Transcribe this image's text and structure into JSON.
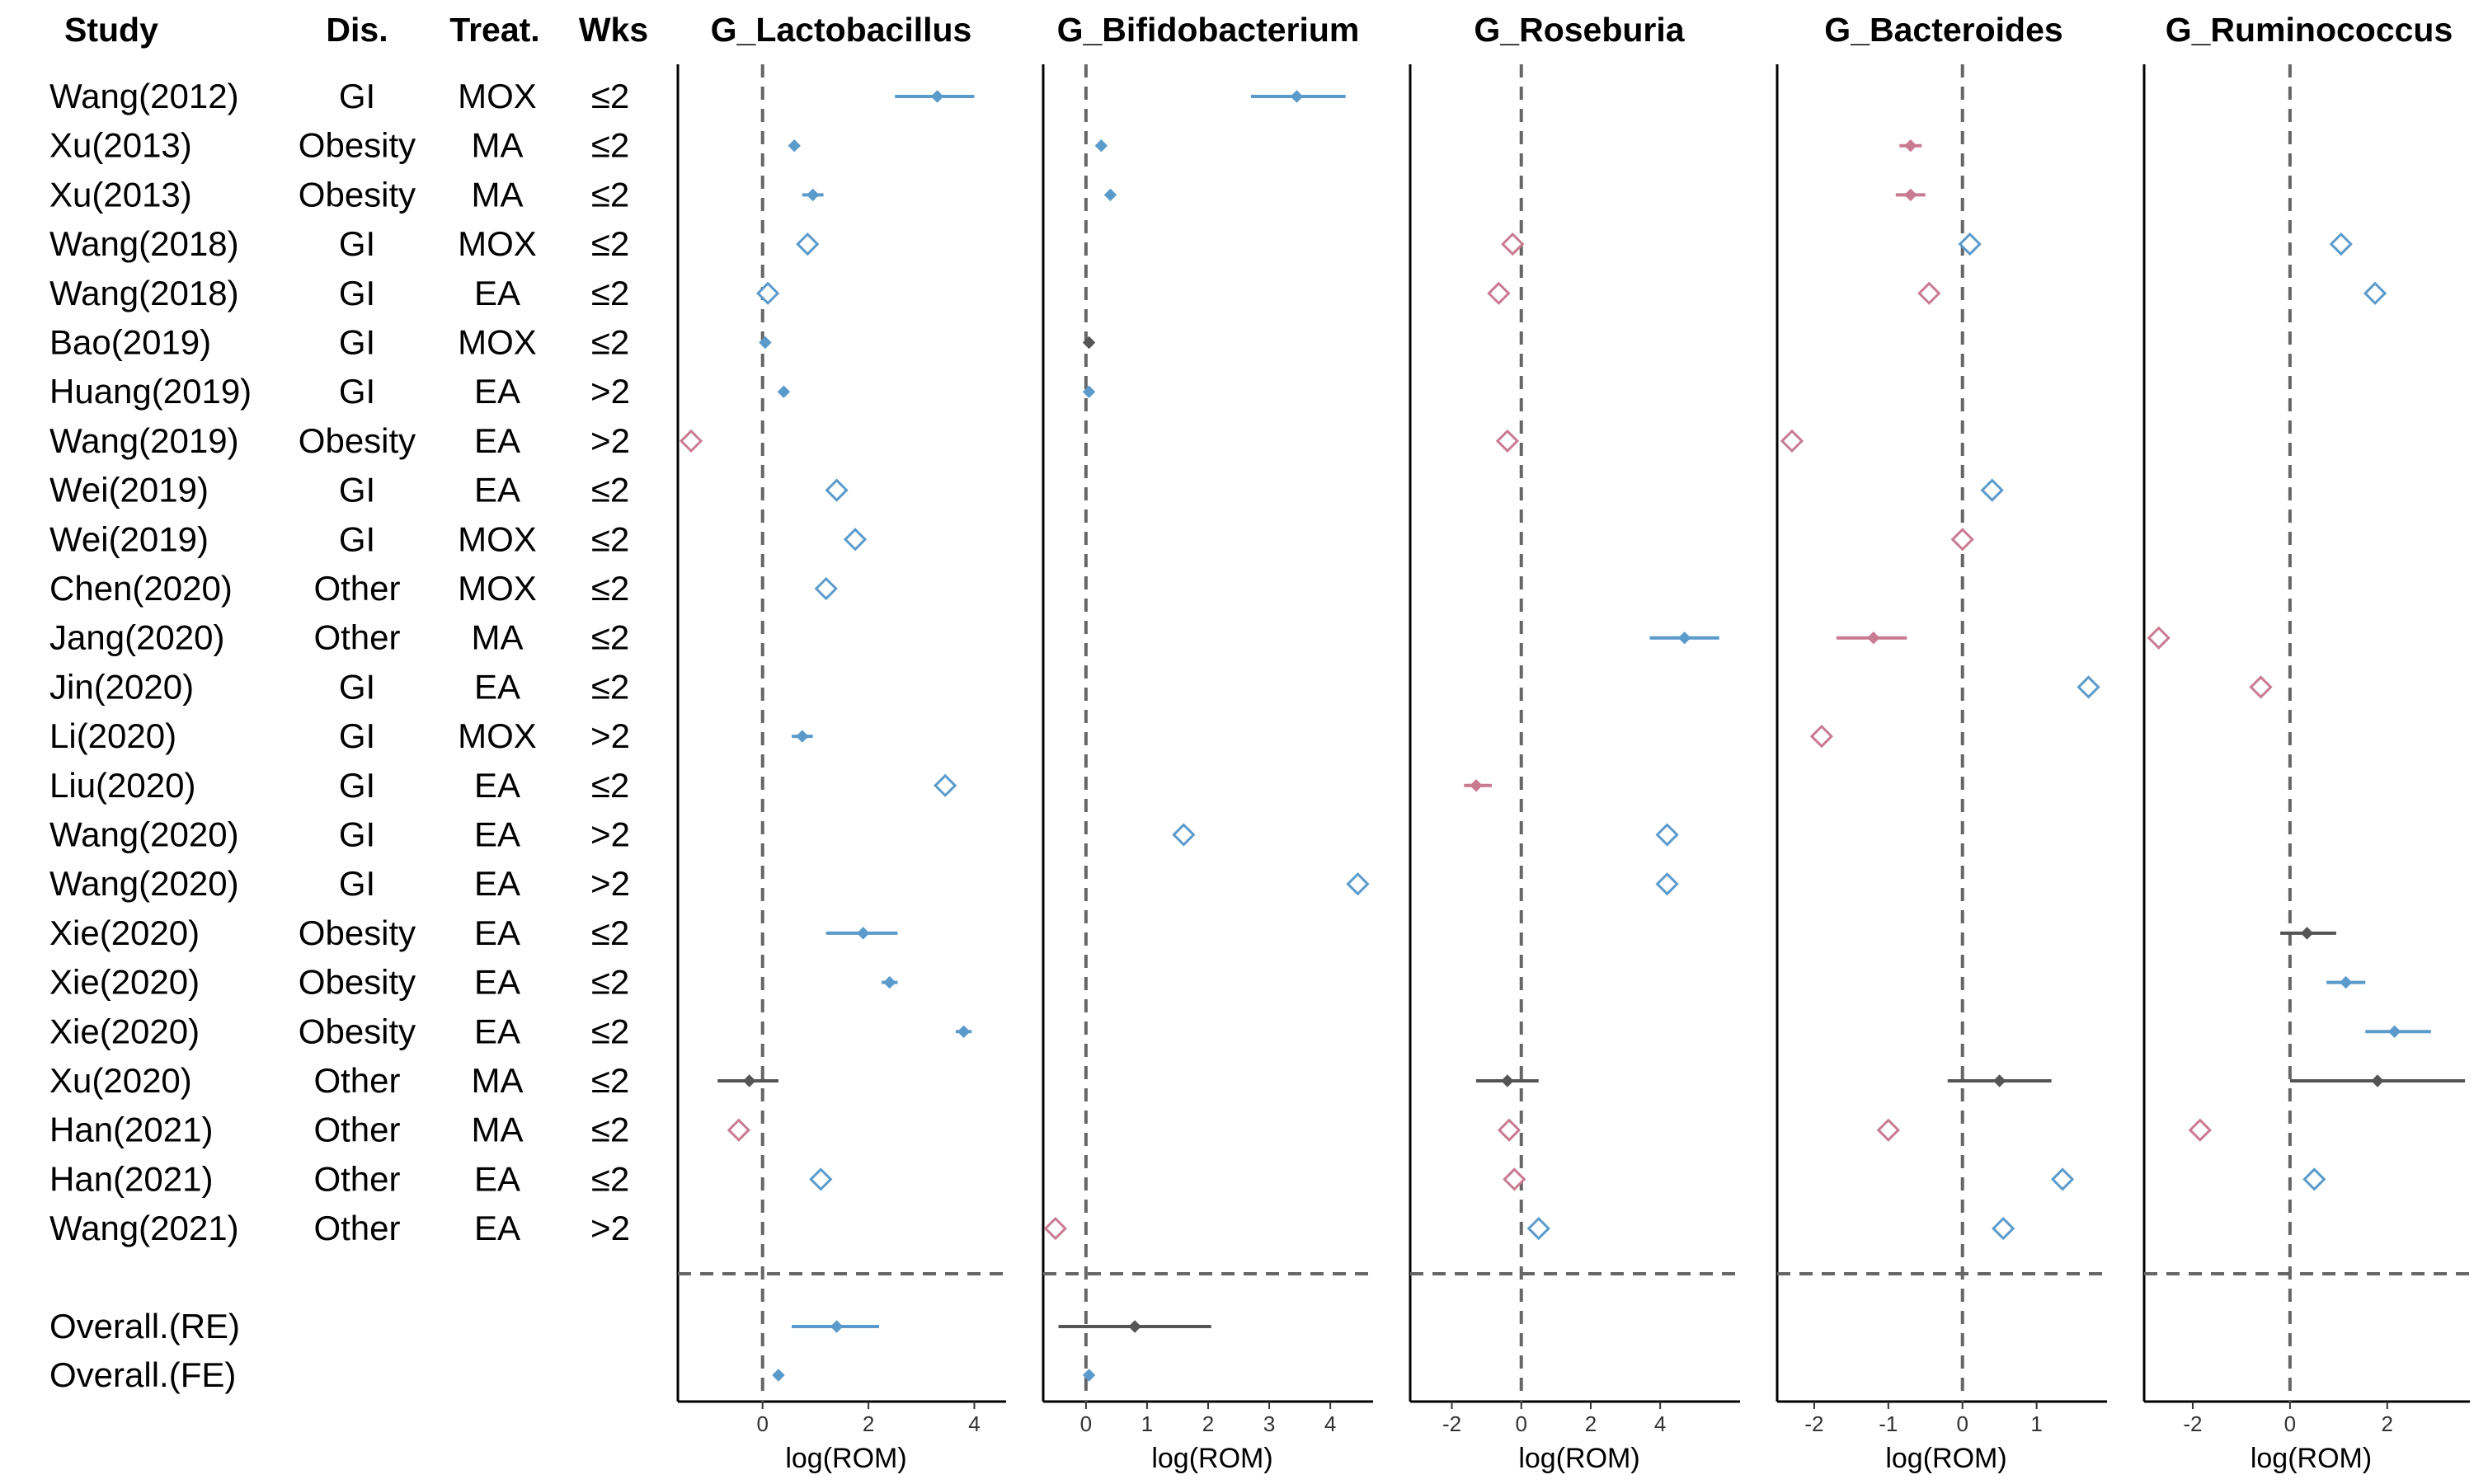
{
  "columns": {
    "study": "Study",
    "disease": "Dis.",
    "treatment": "Treat.",
    "weeks": "Wks"
  },
  "rows": [
    {
      "study": "Wang(2012)",
      "disease": "GI",
      "treatment": "MOX",
      "weeks": "≤2"
    },
    {
      "study": "Xu(2013)",
      "disease": "Obesity",
      "treatment": "MA",
      "weeks": "≤2"
    },
    {
      "study": "Xu(2013)",
      "disease": "Obesity",
      "treatment": "MA",
      "weeks": "≤2"
    },
    {
      "study": "Wang(2018)",
      "disease": "GI",
      "treatment": "MOX",
      "weeks": "≤2"
    },
    {
      "study": "Wang(2018)",
      "disease": "GI",
      "treatment": "EA",
      "weeks": "≤2"
    },
    {
      "study": "Bao(2019)",
      "disease": "GI",
      "treatment": "MOX",
      "weeks": "≤2"
    },
    {
      "study": "Huang(2019)",
      "disease": "GI",
      "treatment": "EA",
      "weeks": ">2"
    },
    {
      "study": "Wang(2019)",
      "disease": "Obesity",
      "treatment": "EA",
      "weeks": ">2"
    },
    {
      "study": "Wei(2019)",
      "disease": "GI",
      "treatment": "EA",
      "weeks": "≤2"
    },
    {
      "study": "Wei(2019)",
      "disease": "GI",
      "treatment": "MOX",
      "weeks": "≤2"
    },
    {
      "study": "Chen(2020)",
      "disease": "Other",
      "treatment": "MOX",
      "weeks": "≤2"
    },
    {
      "study": "Jang(2020)",
      "disease": "Other",
      "treatment": "MA",
      "weeks": "≤2"
    },
    {
      "study": "Jin(2020)",
      "disease": "GI",
      "treatment": "EA",
      "weeks": "≤2"
    },
    {
      "study": "Li(2020)",
      "disease": "GI",
      "treatment": "MOX",
      "weeks": ">2"
    },
    {
      "study": "Liu(2020)",
      "disease": "GI",
      "treatment": "EA",
      "weeks": "≤2"
    },
    {
      "study": "Wang(2020)",
      "disease": "GI",
      "treatment": "EA",
      "weeks": ">2"
    },
    {
      "study": "Wang(2020)",
      "disease": "GI",
      "treatment": "EA",
      "weeks": ">2"
    },
    {
      "study": "Xie(2020)",
      "disease": "Obesity",
      "treatment": "EA",
      "weeks": "≤2"
    },
    {
      "study": "Xie(2020)",
      "disease": "Obesity",
      "treatment": "EA",
      "weeks": "≤2"
    },
    {
      "study": "Xie(2020)",
      "disease": "Obesity",
      "treatment": "EA",
      "weeks": "≤2"
    },
    {
      "study": "Xu(2020)",
      "disease": "Other",
      "treatment": "MA",
      "weeks": "≤2"
    },
    {
      "study": "Han(2021)",
      "disease": "Other",
      "treatment": "MA",
      "weeks": "≤2"
    },
    {
      "study": "Han(2021)",
      "disease": "Other",
      "treatment": "EA",
      "weeks": "≤2"
    },
    {
      "study": "Wang(2021)",
      "disease": "Other",
      "treatment": "EA",
      "weeks": ">2"
    }
  ],
  "overall_rows": [
    "Overall.(RE)",
    "Overall.(FE)"
  ],
  "colors": {
    "positive": "#5b9bcb",
    "negative": "#c97b91",
    "nonsignificant": "#555555",
    "reference": "#666666"
  },
  "chart_data": [
    {
      "type": "forest",
      "title": "G_Lactobacillus",
      "xlabel": "log(ROM)",
      "xlim": [
        -1.6,
        4.6
      ],
      "xticks": [
        0,
        2,
        4
      ],
      "points": [
        {
          "row": 0,
          "est": 3.3,
          "lo": 2.5,
          "hi": 4.0,
          "marker": "filled",
          "color": "positive"
        },
        {
          "row": 1,
          "est": 0.6,
          "marker": "filled",
          "color": "positive"
        },
        {
          "row": 2,
          "est": 0.95,
          "lo": 0.75,
          "hi": 1.15,
          "marker": "filled",
          "color": "positive"
        },
        {
          "row": 3,
          "est": 0.85,
          "marker": "open",
          "color": "positive"
        },
        {
          "row": 4,
          "est": 0.1,
          "marker": "open",
          "color": "positive"
        },
        {
          "row": 5,
          "est": 0.05,
          "marker": "filled",
          "color": "positive"
        },
        {
          "row": 6,
          "est": 0.4,
          "marker": "filled",
          "color": "positive"
        },
        {
          "row": 7,
          "est": -1.35,
          "marker": "open",
          "color": "negative"
        },
        {
          "row": 8,
          "est": 1.4,
          "marker": "open",
          "color": "positive"
        },
        {
          "row": 9,
          "est": 1.75,
          "marker": "open",
          "color": "positive"
        },
        {
          "row": 10,
          "est": 1.2,
          "marker": "open",
          "color": "positive"
        },
        {
          "row": 13,
          "est": 0.75,
          "lo": 0.55,
          "hi": 0.95,
          "marker": "filled",
          "color": "positive"
        },
        {
          "row": 14,
          "est": 3.45,
          "marker": "open",
          "color": "positive"
        },
        {
          "row": 17,
          "est": 1.9,
          "lo": 1.2,
          "hi": 2.55,
          "marker": "filled",
          "color": "positive"
        },
        {
          "row": 18,
          "est": 2.4,
          "lo": 2.25,
          "hi": 2.55,
          "marker": "filled",
          "color": "positive"
        },
        {
          "row": 19,
          "est": 3.8,
          "lo": 3.65,
          "hi": 3.95,
          "marker": "filled",
          "color": "positive"
        },
        {
          "row": 20,
          "est": -0.25,
          "lo": -0.85,
          "hi": 0.3,
          "marker": "filled",
          "color": "nonsignificant"
        },
        {
          "row": 21,
          "est": -0.45,
          "marker": "open",
          "color": "negative"
        },
        {
          "row": 22,
          "est": 1.1,
          "marker": "open",
          "color": "positive"
        }
      ],
      "overall": [
        {
          "label": "Overall.(RE)",
          "est": 1.4,
          "lo": 0.55,
          "hi": 2.2,
          "color": "positive"
        },
        {
          "label": "Overall.(FE)",
          "est": 0.3,
          "color": "positive"
        }
      ]
    },
    {
      "type": "forest",
      "title": "G_Bifidobacterium",
      "xlabel": "log(ROM)",
      "xlim": [
        -0.7,
        4.7
      ],
      "xticks": [
        0,
        1,
        2,
        3,
        4
      ],
      "points": [
        {
          "row": 0,
          "est": 3.45,
          "lo": 2.7,
          "hi": 4.25,
          "marker": "filled",
          "color": "positive"
        },
        {
          "row": 1,
          "est": 0.25,
          "marker": "filled",
          "color": "positive"
        },
        {
          "row": 2,
          "est": 0.4,
          "marker": "filled",
          "color": "positive"
        },
        {
          "row": 5,
          "est": 0.05,
          "marker": "filled",
          "color": "nonsignificant"
        },
        {
          "row": 6,
          "est": 0.05,
          "marker": "filled",
          "color": "positive"
        },
        {
          "row": 15,
          "est": 1.6,
          "marker": "open",
          "color": "positive"
        },
        {
          "row": 16,
          "est": 4.45,
          "marker": "open",
          "color": "positive"
        },
        {
          "row": 23,
          "est": -0.5,
          "marker": "open",
          "color": "negative"
        }
      ],
      "overall": [
        {
          "label": "Overall.(RE)",
          "est": 0.8,
          "lo": -0.45,
          "hi": 2.05,
          "color": "nonsignificant"
        },
        {
          "label": "Overall.(FE)",
          "est": 0.05,
          "color": "positive"
        }
      ]
    },
    {
      "type": "forest",
      "title": "G_Roseburia",
      "xlabel": "log(ROM)",
      "xlim": [
        -3.2,
        6.3
      ],
      "xticks": [
        -2,
        0,
        2,
        4
      ],
      "points": [
        {
          "row": 3,
          "est": -0.25,
          "marker": "open",
          "color": "negative"
        },
        {
          "row": 4,
          "est": -0.65,
          "marker": "open",
          "color": "negative"
        },
        {
          "row": 7,
          "est": -0.4,
          "marker": "open",
          "color": "negative"
        },
        {
          "row": 11,
          "est": 4.7,
          "lo": 3.7,
          "hi": 5.7,
          "marker": "filled",
          "color": "positive"
        },
        {
          "row": 14,
          "est": -1.3,
          "lo": -1.65,
          "hi": -0.85,
          "marker": "filled",
          "color": "negative"
        },
        {
          "row": 15,
          "est": 4.2,
          "marker": "open",
          "color": "positive"
        },
        {
          "row": 16,
          "est": 4.2,
          "marker": "open",
          "color": "positive"
        },
        {
          "row": 20,
          "est": -0.4,
          "lo": -1.3,
          "hi": 0.5,
          "marker": "filled",
          "color": "nonsignificant"
        },
        {
          "row": 21,
          "est": -0.35,
          "marker": "open",
          "color": "negative"
        },
        {
          "row": 22,
          "est": -0.2,
          "marker": "open",
          "color": "negative"
        },
        {
          "row": 23,
          "est": 0.5,
          "marker": "open",
          "color": "positive"
        }
      ],
      "overall": []
    },
    {
      "type": "forest",
      "title": "G_Bacteroides",
      "xlabel": "log(ROM)",
      "xlim": [
        -2.5,
        1.95
      ],
      "xticks": [
        -2,
        -1,
        0,
        1
      ],
      "points": [
        {
          "row": 1,
          "est": -0.7,
          "lo": -0.85,
          "hi": -0.55,
          "marker": "filled",
          "color": "negative"
        },
        {
          "row": 2,
          "est": -0.7,
          "lo": -0.9,
          "hi": -0.5,
          "marker": "filled",
          "color": "negative"
        },
        {
          "row": 3,
          "est": 0.1,
          "marker": "open",
          "color": "positive"
        },
        {
          "row": 4,
          "est": -0.45,
          "marker": "open",
          "color": "negative"
        },
        {
          "row": 7,
          "est": -2.3,
          "marker": "open",
          "color": "negative"
        },
        {
          "row": 8,
          "est": 0.4,
          "marker": "open",
          "color": "positive"
        },
        {
          "row": 9,
          "est": 0.0,
          "marker": "open",
          "color": "negative"
        },
        {
          "row": 11,
          "est": -1.2,
          "lo": -1.7,
          "hi": -0.75,
          "marker": "filled",
          "color": "negative"
        },
        {
          "row": 12,
          "est": 1.7,
          "marker": "open",
          "color": "positive"
        },
        {
          "row": 13,
          "est": -1.9,
          "marker": "open",
          "color": "negative"
        },
        {
          "row": 20,
          "est": 0.5,
          "lo": -0.2,
          "hi": 1.2,
          "marker": "filled",
          "color": "nonsignificant"
        },
        {
          "row": 21,
          "est": -1.0,
          "marker": "open",
          "color": "negative"
        },
        {
          "row": 22,
          "est": 1.35,
          "marker": "open",
          "color": "positive"
        },
        {
          "row": 23,
          "est": 0.55,
          "marker": "open",
          "color": "positive"
        }
      ],
      "overall": []
    },
    {
      "type": "forest",
      "title": "G_Ruminococcus",
      "xlabel": "log(ROM)",
      "xlim": [
        -3.0,
        3.7
      ],
      "xticks": [
        -2,
        0,
        2
      ],
      "points": [
        {
          "row": 3,
          "est": 1.05,
          "marker": "open",
          "color": "positive"
        },
        {
          "row": 4,
          "est": 1.75,
          "marker": "open",
          "color": "positive"
        },
        {
          "row": 11,
          "est": -2.7,
          "marker": "open",
          "color": "negative"
        },
        {
          "row": 12,
          "est": -0.6,
          "marker": "open",
          "color": "negative"
        },
        {
          "row": 17,
          "est": 0.35,
          "lo": -0.2,
          "hi": 0.95,
          "marker": "filled",
          "color": "nonsignificant"
        },
        {
          "row": 18,
          "est": 1.15,
          "lo": 0.75,
          "hi": 1.55,
          "marker": "filled",
          "color": "positive"
        },
        {
          "row": 19,
          "est": 2.15,
          "lo": 1.55,
          "hi": 2.9,
          "marker": "filled",
          "color": "positive"
        },
        {
          "row": 20,
          "est": 1.8,
          "lo": 0.0,
          "hi": 3.6,
          "marker": "filled",
          "color": "nonsignificant"
        },
        {
          "row": 21,
          "est": -1.85,
          "marker": "open",
          "color": "negative"
        },
        {
          "row": 22,
          "est": 0.5,
          "marker": "open",
          "color": "positive"
        }
      ],
      "overall": []
    }
  ]
}
